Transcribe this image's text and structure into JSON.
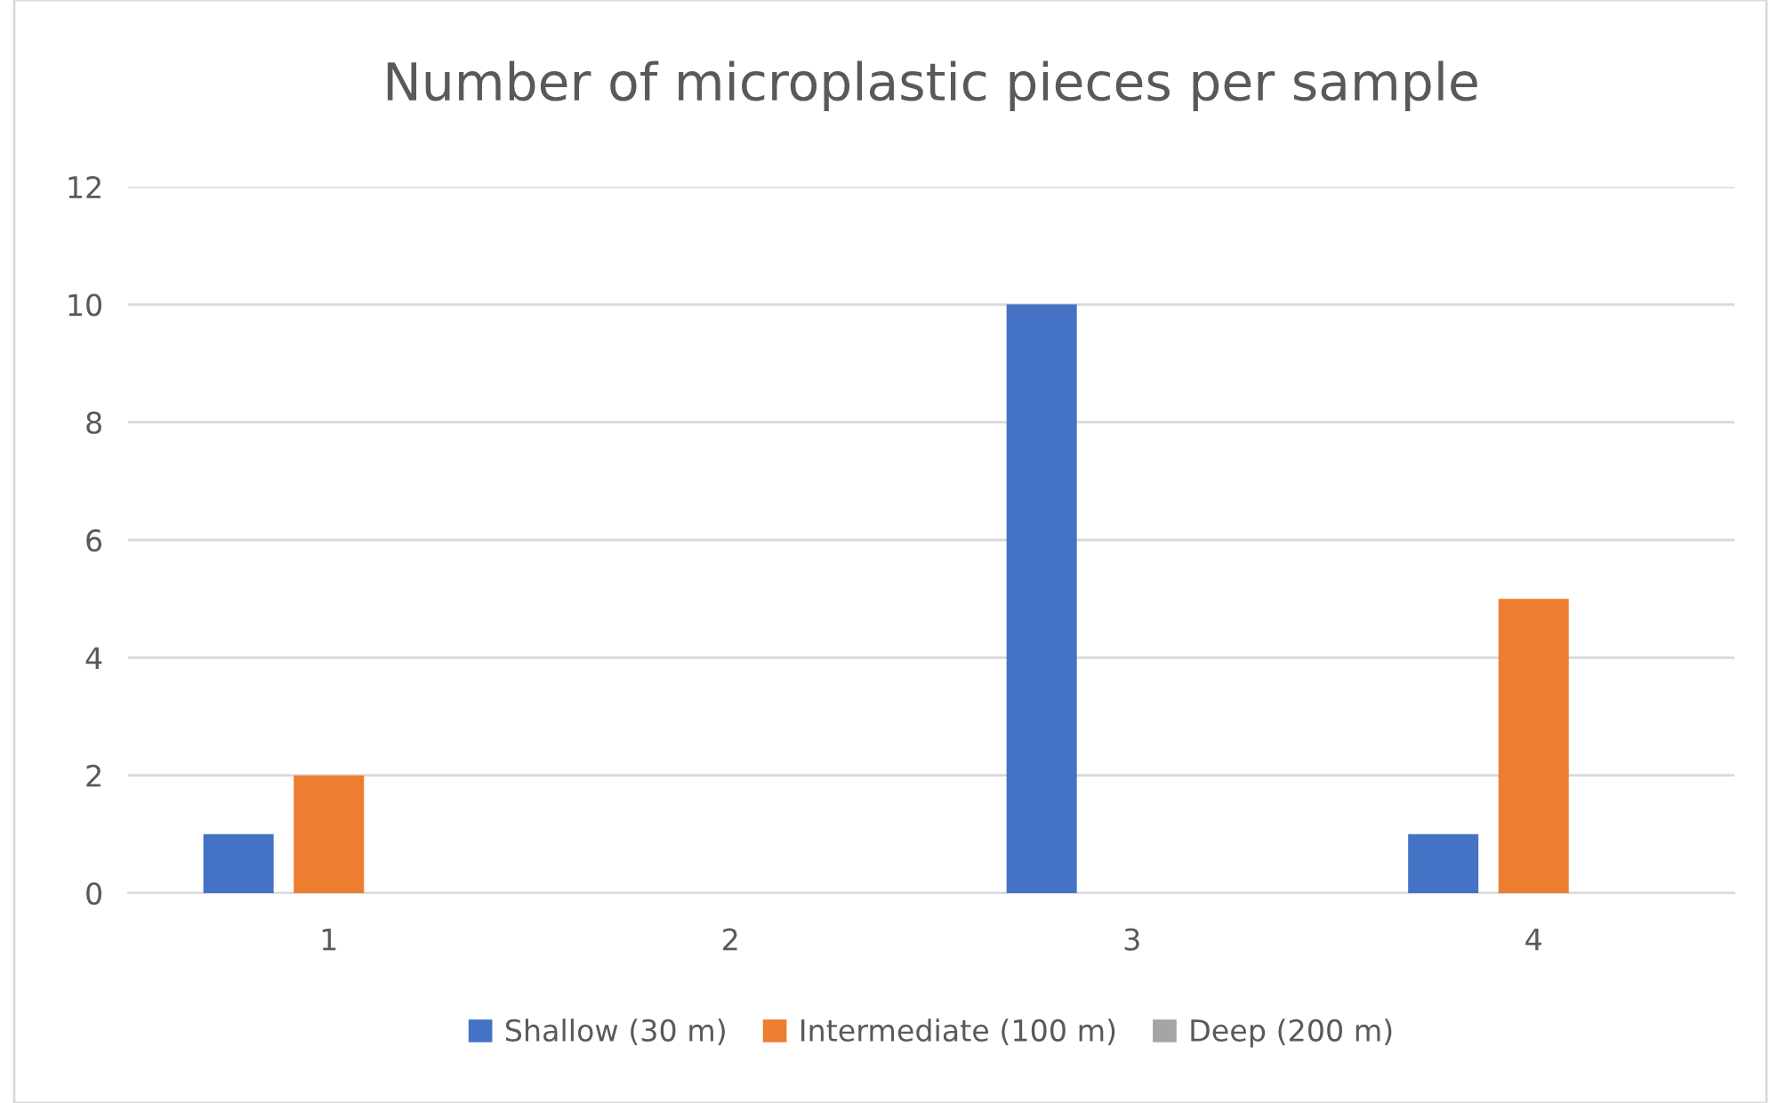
{
  "chart_data": {
    "type": "bar",
    "title": "Number of microplastic pieces per sample",
    "categories": [
      "1",
      "2",
      "3",
      "4"
    ],
    "series": [
      {
        "name": "Shallow (30 m)",
        "color": "#4472c4",
        "values": [
          1,
          0,
          10,
          1
        ]
      },
      {
        "name": "Intermediate (100 m)",
        "color": "#ed7d31",
        "values": [
          2,
          0,
          0,
          5
        ]
      },
      {
        "name": "Deep (200 m)",
        "color": "#a5a5a5",
        "values": [
          0,
          0,
          0,
          0
        ]
      }
    ],
    "ylim": [
      0,
      12
    ],
    "yticks": [
      0,
      2,
      4,
      6,
      8,
      10,
      12
    ],
    "grid": "y",
    "legend": "bottom"
  }
}
